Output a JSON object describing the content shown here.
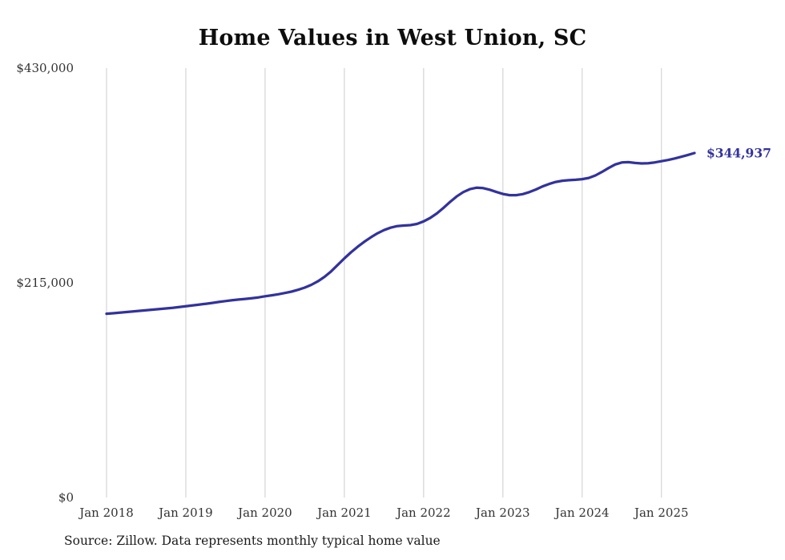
{
  "title": "Home Values in West Union, SC",
  "source_note": "Source: Zillow. Data represents monthly typical home value",
  "colors": {
    "line": "#32329e",
    "grid": "#cccccc",
    "axis_text": "#333333",
    "title_text": "#0d0d0d",
    "annotation": "#32329e"
  },
  "chart_data": {
    "type": "line",
    "title": "Home Values in West Union, SC",
    "series_name": "Monthly typical home value",
    "ylabel": "",
    "xlabel": "",
    "ylim": [
      0,
      430000
    ],
    "grid": "vertical-only",
    "legend": "none",
    "end_label": "$344,937",
    "end_value": 344937,
    "y_ticks": [
      {
        "value": 0,
        "label": "$0"
      },
      {
        "value": 215000,
        "label": "$215,000"
      },
      {
        "value": 430000,
        "label": "$430,000"
      }
    ],
    "x_ticks": [
      {
        "index": 0,
        "label": "Jan 2018"
      },
      {
        "index": 12,
        "label": "Jan 2019"
      },
      {
        "index": 24,
        "label": "Jan 2020"
      },
      {
        "index": 36,
        "label": "Jan 2021"
      },
      {
        "index": 48,
        "label": "Jan 2022"
      },
      {
        "index": 60,
        "label": "Jan 2023"
      },
      {
        "index": 72,
        "label": "Jan 2024"
      },
      {
        "index": 84,
        "label": "Jan 2025"
      }
    ],
    "x": [
      "Jan 2018",
      "Feb 2018",
      "Mar 2018",
      "Apr 2018",
      "May 2018",
      "Jun 2018",
      "Jul 2018",
      "Aug 2018",
      "Sep 2018",
      "Oct 2018",
      "Nov 2018",
      "Dec 2018",
      "Jan 2019",
      "Feb 2019",
      "Mar 2019",
      "Apr 2019",
      "May 2019",
      "Jun 2019",
      "Jul 2019",
      "Aug 2019",
      "Sep 2019",
      "Oct 2019",
      "Nov 2019",
      "Dec 2019",
      "Jan 2020",
      "Feb 2020",
      "Mar 2020",
      "Apr 2020",
      "May 2020",
      "Jun 2020",
      "Jul 2020",
      "Aug 2020",
      "Sep 2020",
      "Oct 2020",
      "Nov 2020",
      "Dec 2020",
      "Jan 2021",
      "Feb 2021",
      "Mar 2021",
      "Apr 2021",
      "May 2021",
      "Jun 2021",
      "Jul 2021",
      "Aug 2021",
      "Sep 2021",
      "Oct 2021",
      "Nov 2021",
      "Dec 2021",
      "Jan 2022",
      "Feb 2022",
      "Mar 2022",
      "Apr 2022",
      "May 2022",
      "Jun 2022",
      "Jul 2022",
      "Aug 2022",
      "Sep 2022",
      "Oct 2022",
      "Nov 2022",
      "Dec 2022",
      "Jan 2023",
      "Feb 2023",
      "Mar 2023",
      "Apr 2023",
      "May 2023",
      "Jun 2023",
      "Jul 2023",
      "Aug 2023",
      "Sep 2023",
      "Oct 2023",
      "Nov 2023",
      "Dec 2023",
      "Jan 2024",
      "Feb 2024",
      "Mar 2024",
      "Apr 2024",
      "May 2024",
      "Jun 2024",
      "Jul 2024",
      "Aug 2024",
      "Sep 2024",
      "Oct 2024",
      "Nov 2024",
      "Dec 2024",
      "Jan 2025",
      "Feb 2025",
      "Mar 2025",
      "Apr 2025",
      "May 2025",
      "Jun 2025"
    ],
    "values": [
      184000,
      184500,
      185100,
      185700,
      186300,
      186900,
      187500,
      188100,
      188700,
      189300,
      190000,
      190800,
      191600,
      192400,
      193200,
      194000,
      194900,
      195800,
      196700,
      197500,
      198200,
      198900,
      199600,
      200400,
      201500,
      202500,
      203500,
      204800,
      206200,
      208000,
      210200,
      213000,
      216500,
      221000,
      226500,
      233000,
      239500,
      245500,
      251000,
      256000,
      260500,
      264500,
      267800,
      270200,
      271800,
      272400,
      272800,
      274000,
      276500,
      280000,
      284500,
      290000,
      296000,
      301500,
      305800,
      308800,
      310200,
      309800,
      308200,
      306000,
      304000,
      302800,
      302800,
      303800,
      305800,
      308500,
      311500,
      314000,
      316000,
      317200,
      317800,
      318200,
      318800,
      320000,
      322500,
      326000,
      330000,
      333500,
      335500,
      335800,
      335000,
      334500,
      334800,
      335600,
      336800,
      338000,
      339500,
      341200,
      343000,
      344937
    ]
  }
}
